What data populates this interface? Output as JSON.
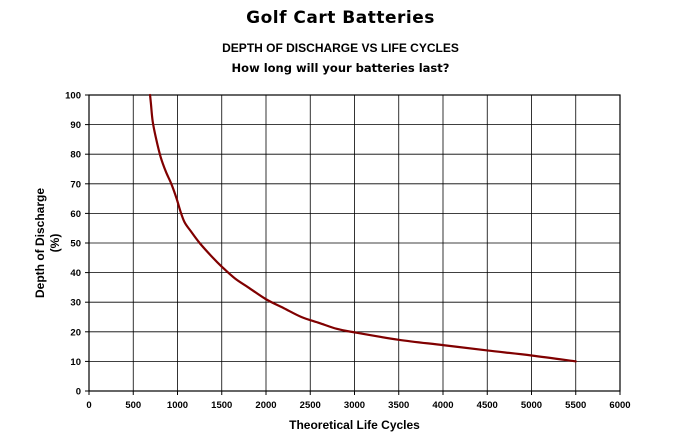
{
  "chart_data": {
    "type": "line",
    "title": "Golf Cart Batteries",
    "subtitle": "DEPTH OF DISCHARGE VS LIFE CYCLES",
    "subtitle2": "How long will your batteries last?",
    "xlabel": "Theoretical Life Cycles",
    "ylabel_line1": "Depth of Discharge",
    "ylabel_line2": "(%)",
    "xlim": [
      0,
      6000
    ],
    "ylim": [
      0,
      100
    ],
    "xticks": [
      0,
      500,
      1000,
      1500,
      2000,
      2500,
      3000,
      3500,
      4000,
      4500,
      5000,
      5500,
      6000
    ],
    "yticks": [
      0,
      10,
      20,
      30,
      40,
      50,
      60,
      70,
      80,
      90,
      100
    ],
    "grid": true,
    "line_color": "#800000",
    "series": [
      {
        "x": [
          690,
          700,
          720,
          760,
          810,
          870,
          930,
          990,
          1030,
          1080,
          1150,
          1250,
          1400,
          1500,
          1650,
          1800,
          2000,
          2200,
          2400,
          2600,
          2800,
          3000,
          3500,
          4000,
          4500,
          5000,
          5500
        ],
        "y": [
          100,
          97,
          91,
          85,
          79,
          74,
          70,
          65,
          61,
          57,
          54,
          50,
          45,
          42,
          38,
          35,
          31,
          28,
          25,
          23,
          21,
          19.8,
          17.3,
          15.5,
          13.7,
          12,
          10
        ]
      }
    ]
  }
}
